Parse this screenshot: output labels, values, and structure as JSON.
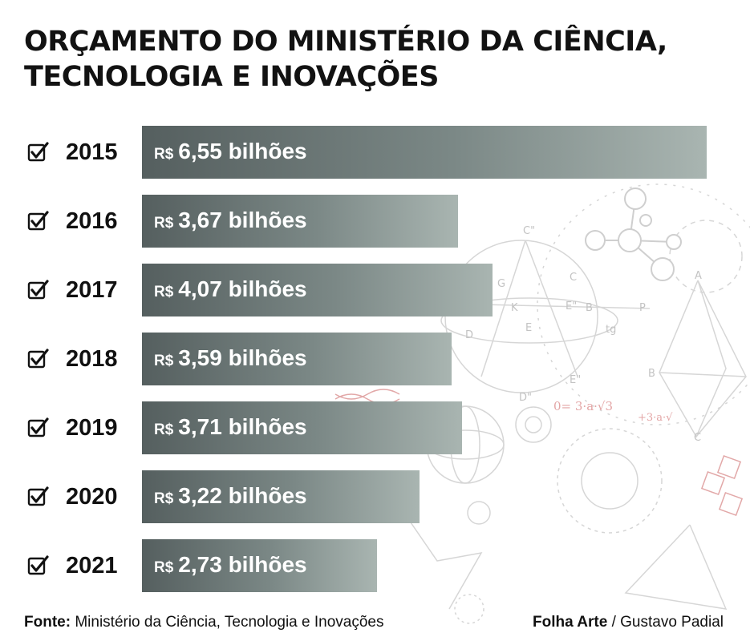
{
  "title": "ORÇAMENTO DO MINISTÉRIO DA CIÊNCIA, TECNOLOGIA E INOVAÇÕES",
  "chart_data": {
    "type": "bar",
    "orientation": "horizontal",
    "title": "ORÇAMENTO DO MINISTÉRIO DA CIÊNCIA, TECNOLOGIA E INOVAÇÕES",
    "categories": [
      "2015",
      "2016",
      "2017",
      "2018",
      "2019",
      "2020",
      "2021"
    ],
    "values": [
      6.55,
      3.67,
      4.07,
      3.59,
      3.71,
      3.22,
      2.73
    ],
    "data_labels": [
      "6,55 bilhões",
      "3,67 bilhões",
      "4,07 bilhões",
      "3,59 bilhões",
      "3,71 bilhões",
      "3,22 bilhões",
      "2,73 bilhões"
    ],
    "currency_label": "R$",
    "xlim": [
      0,
      6.55
    ],
    "grid": false,
    "legend": "none",
    "bar_gradient": [
      "#555f5f",
      "#a9b5b1"
    ],
    "check_icon": "checkbox-checked-icon"
  },
  "footer": {
    "source_label": "Fonte:",
    "source_text": " Ministério da Ciência, Tecnologia e Inovações",
    "credit_label": "Folha Arte",
    "credit_text": " / Gustavo Padial"
  }
}
